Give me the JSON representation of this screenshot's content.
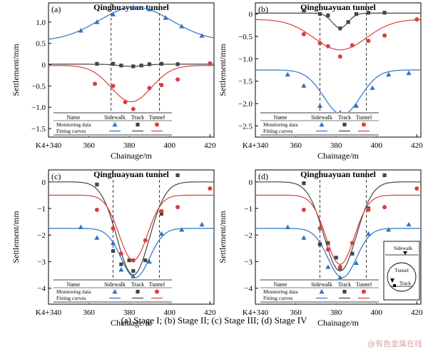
{
  "caption": "(a) Stage I; (b) Stage II; (c) Stage III; (d) Stage IV",
  "watermark": "@有色金属在线",
  "legend": {
    "header_name": "Name",
    "col_sidewalk": "Sidewalk",
    "col_track": "Track",
    "col_tunnel": "Tunnel",
    "row_monitoring": "Monitoring data",
    "row_fitting": "Fitting curves"
  },
  "inset": {
    "label_sidewalk": "Sidewalk",
    "label_tunnel": "Tunnel",
    "label_track": "Track"
  },
  "colors": {
    "sidewalk": "#2f74c6",
    "track": "#444444",
    "tunnel": "#d8413b"
  },
  "chart_data": [
    {
      "type": "scatter",
      "panel_label": "(a)",
      "title": "Qinghuayuan tunnel",
      "xlabel": "Chainage/m",
      "ylabel": "Settlement/mm",
      "xlim": [
        340,
        422
      ],
      "ylim": [
        -1.7,
        1.45
      ],
      "xticks": [
        340,
        360,
        380,
        400,
        420
      ],
      "xtick_labels": [
        "K4+340",
        "360",
        "380",
        "400",
        "420"
      ],
      "yticks": [
        1.0,
        0.5,
        0,
        -0.5,
        -1.0,
        -1.5
      ],
      "ytick_labels": [
        "1.0",
        "0.5",
        "0",
        "−0.5",
        "−1.0",
        "−1.5"
      ],
      "vlines": [
        371,
        395
      ],
      "series": [
        {
          "name": "Sidewalk",
          "marker": "triangle",
          "x": [
            356,
            364,
            372,
            382,
            390,
            398,
            406,
            416
          ],
          "y": [
            0.8,
            1.0,
            1.18,
            1.35,
            1.3,
            1.1,
            0.9,
            0.68
          ],
          "fit": {
            "base": 0.55,
            "amp": 0.8,
            "center": 383,
            "sigma": 18
          }
        },
        {
          "name": "Track",
          "marker": "square",
          "x": [
            364,
            372,
            376,
            382,
            386,
            390,
            396,
            404
          ],
          "y": [
            0.02,
            0.02,
            -0.02,
            -0.04,
            -0.02,
            0.01,
            0.02,
            0.01
          ],
          "fit": {
            "base": 0.01,
            "amp": -0.05,
            "center": 381,
            "sigma": 6
          }
        },
        {
          "name": "Tunnel",
          "marker": "circle",
          "x": [
            338,
            363,
            372,
            378,
            382,
            390,
            396,
            404,
            420
          ],
          "y": [
            -0.15,
            -0.45,
            -0.5,
            -0.88,
            -1.04,
            -0.55,
            -0.48,
            -0.35,
            0.03
          ],
          "fit": {
            "base": -0.02,
            "amp": -0.85,
            "center": 381,
            "sigma": 10
          }
        }
      ]
    },
    {
      "type": "scatter",
      "panel_label": "(b)",
      "title": "Qinghuayuan tunnel",
      "xlabel": "Chainage/m",
      "ylabel": "Settlement/mm",
      "xlim": [
        340,
        422
      ],
      "ylim": [
        -2.75,
        0.25
      ],
      "xticks": [
        340,
        360,
        380,
        400,
        420
      ],
      "xtick_labels": [
        "K4+340",
        "360",
        "380",
        "400",
        "420"
      ],
      "yticks": [
        0,
        -0.5,
        -1.0,
        -1.5,
        -2.0,
        -2.5
      ],
      "ytick_labels": [
        "0",
        "−0.5",
        "−1.0",
        "−1.5",
        "−2.0",
        "−2.5"
      ],
      "vlines": [
        372,
        395
      ],
      "series": [
        {
          "name": "Sidewalk",
          "marker": "triangle",
          "x": [
            356,
            364,
            372,
            382,
            390,
            398,
            406,
            416
          ],
          "y": [
            -1.35,
            -1.6,
            -2.05,
            -2.2,
            -2.05,
            -1.65,
            -1.35,
            -1.32
          ],
          "fit": {
            "base": -1.25,
            "amp": -1.0,
            "center": 383,
            "sigma": 9
          }
        },
        {
          "name": "Track",
          "marker": "square",
          "x": [
            364,
            372,
            376,
            382,
            386,
            390,
            396,
            404
          ],
          "y": [
            0.08,
            0.0,
            -0.03,
            -0.32,
            -0.18,
            0.0,
            0.03,
            0.03
          ],
          "fit": {
            "base": 0.02,
            "amp": -0.33,
            "center": 382,
            "sigma": 4
          }
        },
        {
          "name": "Tunnel",
          "marker": "circle",
          "x": [
            338,
            364,
            372,
            376,
            382,
            388,
            396,
            404,
            420
          ],
          "y": [
            -0.15,
            -0.45,
            -0.65,
            -0.72,
            -0.95,
            -0.7,
            -0.6,
            -0.48,
            -0.12
          ],
          "fit": {
            "base": -0.12,
            "amp": -0.68,
            "center": 382,
            "sigma": 13
          }
        }
      ]
    },
    {
      "type": "scatter",
      "panel_label": "(c)",
      "title": "Qinghuayuan tunnel",
      "xlabel": "Chainage/m",
      "ylabel": "Settlement/mm",
      "xlim": [
        340,
        422
      ],
      "ylim": [
        -4.6,
        0.45
      ],
      "xticks": [
        340,
        360,
        380,
        400,
        420
      ],
      "xtick_labels": [
        "K4+340",
        "360",
        "380",
        "400",
        "420"
      ],
      "yticks": [
        0,
        -1,
        -2,
        -3,
        -4
      ],
      "ytick_labels": [
        "0",
        "−1",
        "−2",
        "−3",
        "−4"
      ],
      "vlines": [
        372,
        395
      ],
      "series": [
        {
          "name": "Sidewalk",
          "marker": "triangle",
          "x": [
            356,
            364,
            372,
            376,
            382,
            390,
            396,
            406,
            416
          ],
          "y": [
            -1.7,
            -2.1,
            -2.3,
            -3.3,
            -3.55,
            -3.0,
            -1.95,
            -1.8,
            -1.6
          ],
          "fit": {
            "base": -1.75,
            "amp": -1.85,
            "center": 383,
            "sigma": 7
          }
        },
        {
          "name": "Track",
          "marker": "square",
          "x": [
            364,
            372,
            376,
            380,
            382,
            388,
            396,
            404
          ],
          "y": [
            -0.1,
            -2.6,
            -3.1,
            -2.95,
            -3.35,
            -2.95,
            -1.2,
            0.25
          ],
          "fit": {
            "base": 0.0,
            "amp": -3.5,
            "center": 382,
            "sigma": 8
          }
        },
        {
          "name": "Tunnel",
          "marker": "circle",
          "x": [
            338,
            364,
            372,
            376,
            382,
            388,
            396,
            404,
            420
          ],
          "y": [
            -0.35,
            -1.05,
            -1.75,
            -2.7,
            -2.95,
            -2.2,
            -1.1,
            -0.95,
            -0.25
          ],
          "fit": {
            "base": -0.5,
            "amp": -2.45,
            "center": 382,
            "sigma": 7
          }
        }
      ]
    },
    {
      "type": "scatter",
      "panel_label": "(d)",
      "title": "Qinghuayuan tunnel",
      "xlabel": "Chainage/m",
      "ylabel": "Settlement/mm",
      "xlim": [
        340,
        422
      ],
      "ylim": [
        -4.6,
        0.45
      ],
      "xticks": [
        340,
        360,
        380,
        400,
        420
      ],
      "xtick_labels": [
        "K4+340",
        "360",
        "380",
        "400",
        "420"
      ],
      "yticks": [
        0,
        -1,
        -2,
        -3,
        -4
      ],
      "ytick_labels": [
        "0",
        "−1",
        "−2",
        "−3",
        "−4"
      ],
      "vlines": [
        372,
        395
      ],
      "series": [
        {
          "name": "Sidewalk",
          "marker": "triangle",
          "x": [
            356,
            364,
            372,
            376,
            382,
            390,
            396,
            406,
            416
          ],
          "y": [
            -1.7,
            -2.1,
            -2.3,
            -3.2,
            -3.6,
            -3.05,
            -1.95,
            -1.8,
            -1.6
          ],
          "fit": {
            "base": -1.75,
            "amp": -1.85,
            "center": 383,
            "sigma": 7
          }
        },
        {
          "name": "Track",
          "marker": "square",
          "x": [
            364,
            372,
            376,
            380,
            382,
            388,
            396,
            404
          ],
          "y": [
            -0.05,
            -2.35,
            -2.3,
            -2.85,
            -3.25,
            -2.7,
            -1.0,
            0.25
          ],
          "fit": {
            "base": 0.0,
            "amp": -3.35,
            "center": 382,
            "sigma": 8
          }
        },
        {
          "name": "Tunnel",
          "marker": "circle",
          "x": [
            338,
            364,
            372,
            376,
            382,
            388,
            396,
            404,
            420
          ],
          "y": [
            -0.35,
            -1.05,
            -1.75,
            -2.55,
            -3.2,
            -2.3,
            -1.05,
            -0.95,
            -0.25
          ],
          "fit": {
            "base": -0.5,
            "amp": -2.6,
            "center": 382,
            "sigma": 7
          }
        }
      ]
    }
  ]
}
